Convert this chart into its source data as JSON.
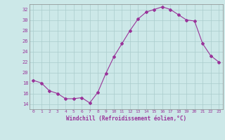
{
  "x": [
    0,
    1,
    2,
    3,
    4,
    5,
    6,
    7,
    8,
    9,
    10,
    11,
    12,
    13,
    14,
    15,
    16,
    17,
    18,
    19,
    20,
    21,
    22,
    23
  ],
  "y": [
    18.5,
    18.0,
    16.5,
    16.0,
    15.0,
    15.0,
    15.2,
    14.2,
    16.2,
    19.8,
    23.0,
    25.5,
    28.0,
    30.2,
    31.5,
    32.0,
    32.5,
    32.0,
    31.0,
    30.0,
    29.8,
    25.5,
    23.2,
    22.0
  ],
  "line_color": "#993399",
  "marker": "D",
  "marker_size": 2,
  "bg_color": "#cce8e8",
  "grid_color": "#aacccc",
  "xlabel": "Windchill (Refroidissement éolien,°C)",
  "xlabel_color": "#993399",
  "tick_color": "#993399",
  "ylim": [
    13,
    33
  ],
  "xlim": [
    -0.5,
    23.5
  ],
  "yticks": [
    14,
    16,
    18,
    20,
    22,
    24,
    26,
    28,
    30,
    32
  ],
  "xticks": [
    0,
    1,
    2,
    3,
    4,
    5,
    6,
    7,
    8,
    9,
    10,
    11,
    12,
    13,
    14,
    15,
    16,
    17,
    18,
    19,
    20,
    21,
    22,
    23
  ]
}
